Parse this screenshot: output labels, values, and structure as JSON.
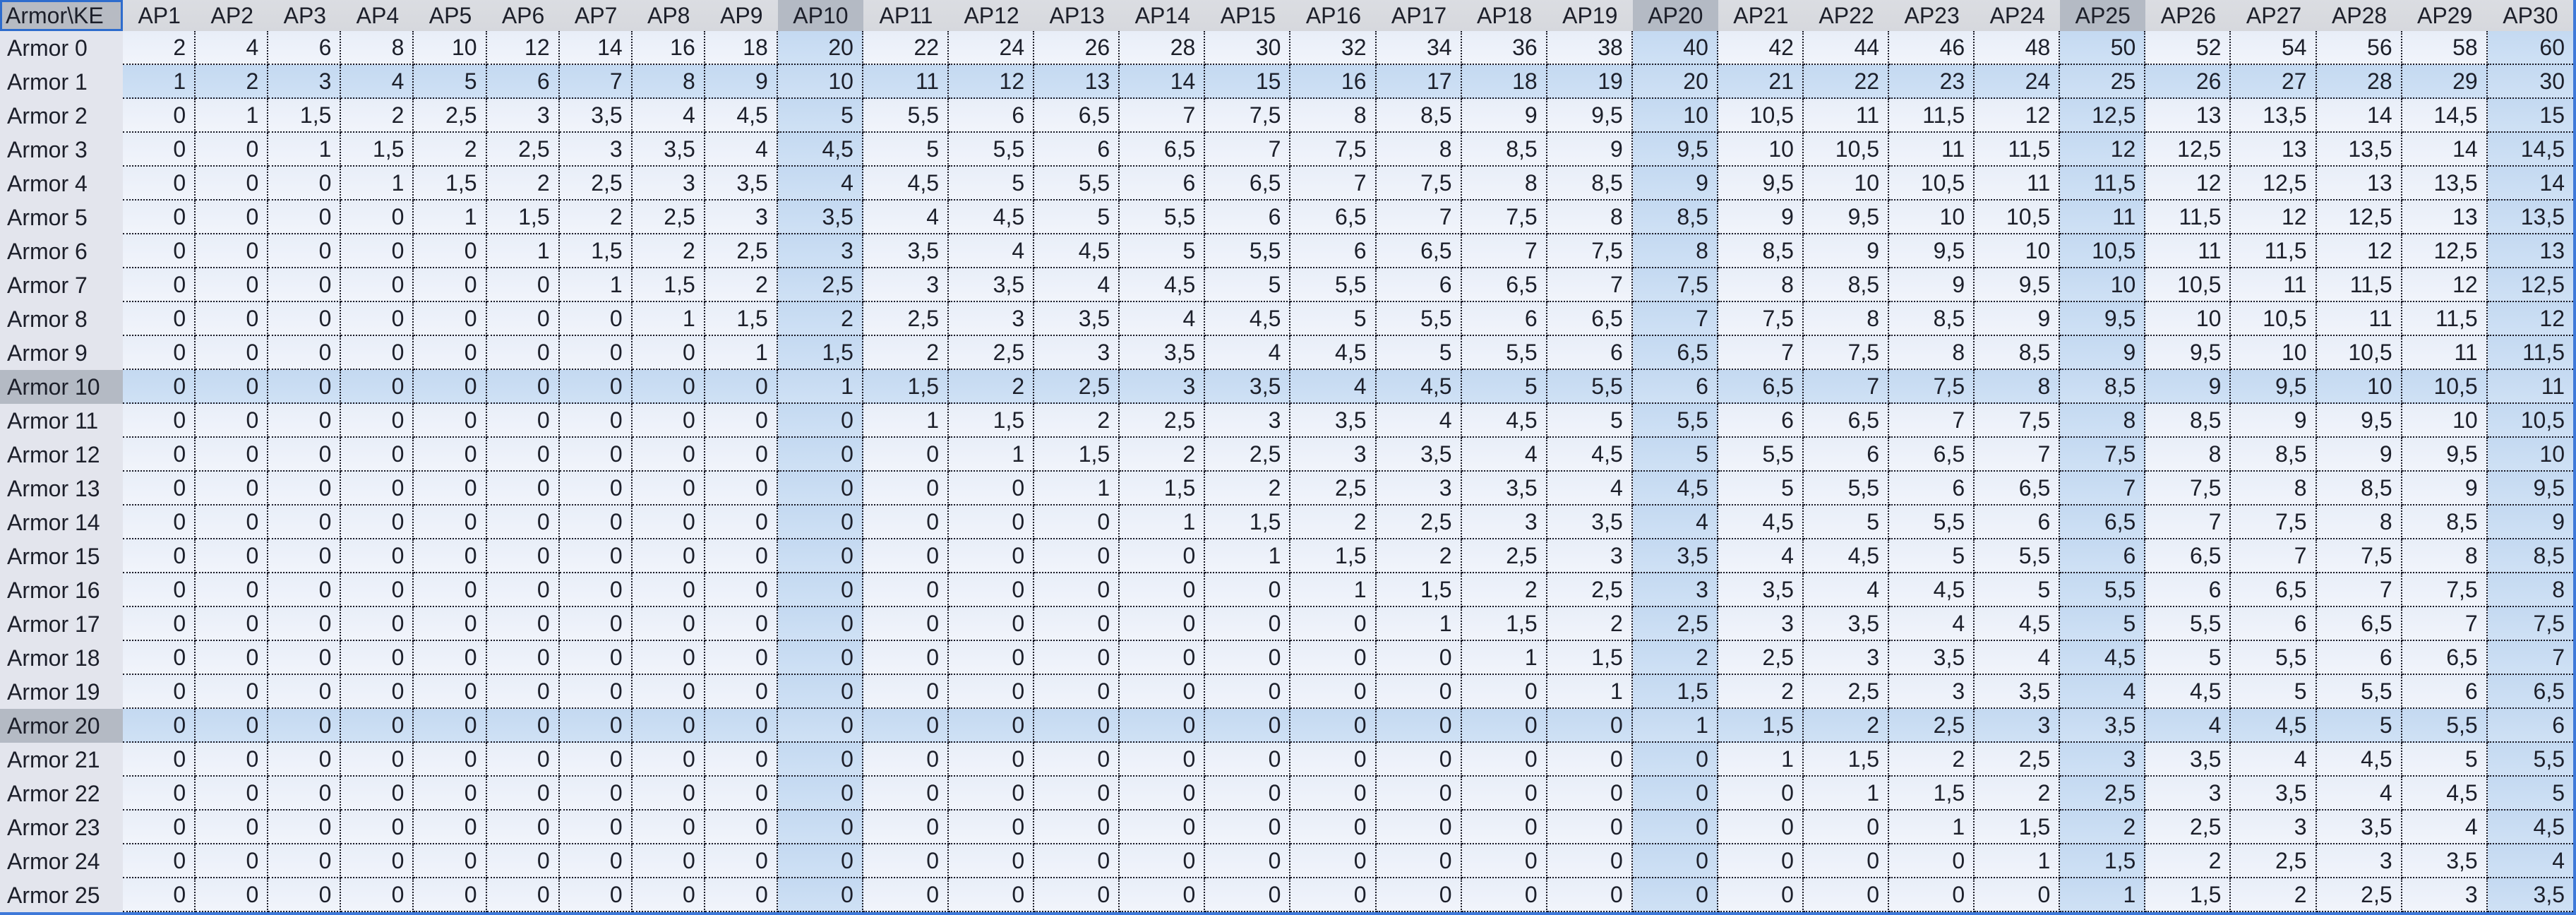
{
  "sheet": {
    "corner_label": "Armor\\KE",
    "column_headers": [
      "AP1",
      "AP2",
      "AP3",
      "AP4",
      "AP5",
      "AP6",
      "AP7",
      "AP8",
      "AP9",
      "AP10",
      "AP11",
      "AP12",
      "AP13",
      "AP14",
      "AP15",
      "AP16",
      "AP17",
      "AP18",
      "AP19",
      "AP20",
      "AP21",
      "AP22",
      "AP23",
      "AP24",
      "AP25",
      "AP26",
      "AP27",
      "AP28",
      "AP29",
      "AP30"
    ],
    "rows": [
      {
        "label": "Armor 0",
        "values": [
          "2",
          "4",
          "6",
          "8",
          "10",
          "12",
          "14",
          "16",
          "18",
          "20",
          "22",
          "24",
          "26",
          "28",
          "30",
          "32",
          "34",
          "36",
          "38",
          "40",
          "42",
          "44",
          "46",
          "48",
          "50",
          "52",
          "54",
          "56",
          "58",
          "60"
        ]
      },
      {
        "label": "Armor 1",
        "values": [
          "1",
          "2",
          "3",
          "4",
          "5",
          "6",
          "7",
          "8",
          "9",
          "10",
          "11",
          "12",
          "13",
          "14",
          "15",
          "16",
          "17",
          "18",
          "19",
          "20",
          "21",
          "22",
          "23",
          "24",
          "25",
          "26",
          "27",
          "28",
          "29",
          "30"
        ]
      },
      {
        "label": "Armor 2",
        "values": [
          "0",
          "1",
          "1,5",
          "2",
          "2,5",
          "3",
          "3,5",
          "4",
          "4,5",
          "5",
          "5,5",
          "6",
          "6,5",
          "7",
          "7,5",
          "8",
          "8,5",
          "9",
          "9,5",
          "10",
          "10,5",
          "11",
          "11,5",
          "12",
          "12,5",
          "13",
          "13,5",
          "14",
          "14,5",
          "15"
        ]
      },
      {
        "label": "Armor 3",
        "values": [
          "0",
          "0",
          "1",
          "1,5",
          "2",
          "2,5",
          "3",
          "3,5",
          "4",
          "4,5",
          "5",
          "5,5",
          "6",
          "6,5",
          "7",
          "7,5",
          "8",
          "8,5",
          "9",
          "9,5",
          "10",
          "10,5",
          "11",
          "11,5",
          "12",
          "12,5",
          "13",
          "13,5",
          "14",
          "14,5"
        ]
      },
      {
        "label": "Armor 4",
        "values": [
          "0",
          "0",
          "0",
          "1",
          "1,5",
          "2",
          "2,5",
          "3",
          "3,5",
          "4",
          "4,5",
          "5",
          "5,5",
          "6",
          "6,5",
          "7",
          "7,5",
          "8",
          "8,5",
          "9",
          "9,5",
          "10",
          "10,5",
          "11",
          "11,5",
          "12",
          "12,5",
          "13",
          "13,5",
          "14"
        ]
      },
      {
        "label": "Armor 5",
        "values": [
          "0",
          "0",
          "0",
          "0",
          "1",
          "1,5",
          "2",
          "2,5",
          "3",
          "3,5",
          "4",
          "4,5",
          "5",
          "5,5",
          "6",
          "6,5",
          "7",
          "7,5",
          "8",
          "8,5",
          "9",
          "9,5",
          "10",
          "10,5",
          "11",
          "11,5",
          "12",
          "12,5",
          "13",
          "13,5"
        ]
      },
      {
        "label": "Armor 6",
        "values": [
          "0",
          "0",
          "0",
          "0",
          "0",
          "1",
          "1,5",
          "2",
          "2,5",
          "3",
          "3,5",
          "4",
          "4,5",
          "5",
          "5,5",
          "6",
          "6,5",
          "7",
          "7,5",
          "8",
          "8,5",
          "9",
          "9,5",
          "10",
          "10,5",
          "11",
          "11,5",
          "12",
          "12,5",
          "13"
        ]
      },
      {
        "label": "Armor 7",
        "values": [
          "0",
          "0",
          "0",
          "0",
          "0",
          "0",
          "1",
          "1,5",
          "2",
          "2,5",
          "3",
          "3,5",
          "4",
          "4,5",
          "5",
          "5,5",
          "6",
          "6,5",
          "7",
          "7,5",
          "8",
          "8,5",
          "9",
          "9,5",
          "10",
          "10,5",
          "11",
          "11,5",
          "12",
          "12,5"
        ]
      },
      {
        "label": "Armor 8",
        "values": [
          "0",
          "0",
          "0",
          "0",
          "0",
          "0",
          "0",
          "1",
          "1,5",
          "2",
          "2,5",
          "3",
          "3,5",
          "4",
          "4,5",
          "5",
          "5,5",
          "6",
          "6,5",
          "7",
          "7,5",
          "8",
          "8,5",
          "9",
          "9,5",
          "10",
          "10,5",
          "11",
          "11,5",
          "12"
        ]
      },
      {
        "label": "Armor 9",
        "values": [
          "0",
          "0",
          "0",
          "0",
          "0",
          "0",
          "0",
          "0",
          "1",
          "1,5",
          "2",
          "2,5",
          "3",
          "3,5",
          "4",
          "4,5",
          "5",
          "5,5",
          "6",
          "6,5",
          "7",
          "7,5",
          "8",
          "8,5",
          "9",
          "9,5",
          "10",
          "10,5",
          "11",
          "11,5"
        ]
      },
      {
        "label": "Armor 10",
        "values": [
          "0",
          "0",
          "0",
          "0",
          "0",
          "0",
          "0",
          "0",
          "0",
          "1",
          "1,5",
          "2",
          "2,5",
          "3",
          "3,5",
          "4",
          "4,5",
          "5",
          "5,5",
          "6",
          "6,5",
          "7",
          "7,5",
          "8",
          "8,5",
          "9",
          "9,5",
          "10",
          "10,5",
          "11"
        ]
      },
      {
        "label": "Armor 11",
        "values": [
          "0",
          "0",
          "0",
          "0",
          "0",
          "0",
          "0",
          "0",
          "0",
          "0",
          "1",
          "1,5",
          "2",
          "2,5",
          "3",
          "3,5",
          "4",
          "4,5",
          "5",
          "5,5",
          "6",
          "6,5",
          "7",
          "7,5",
          "8",
          "8,5",
          "9",
          "9,5",
          "10",
          "10,5"
        ]
      },
      {
        "label": "Armor 12",
        "values": [
          "0",
          "0",
          "0",
          "0",
          "0",
          "0",
          "0",
          "0",
          "0",
          "0",
          "0",
          "1",
          "1,5",
          "2",
          "2,5",
          "3",
          "3,5",
          "4",
          "4,5",
          "5",
          "5,5",
          "6",
          "6,5",
          "7",
          "7,5",
          "8",
          "8,5",
          "9",
          "9,5",
          "10"
        ]
      },
      {
        "label": "Armor 13",
        "values": [
          "0",
          "0",
          "0",
          "0",
          "0",
          "0",
          "0",
          "0",
          "0",
          "0",
          "0",
          "0",
          "1",
          "1,5",
          "2",
          "2,5",
          "3",
          "3,5",
          "4",
          "4,5",
          "5",
          "5,5",
          "6",
          "6,5",
          "7",
          "7,5",
          "8",
          "8,5",
          "9",
          "9,5"
        ]
      },
      {
        "label": "Armor 14",
        "values": [
          "0",
          "0",
          "0",
          "0",
          "0",
          "0",
          "0",
          "0",
          "0",
          "0",
          "0",
          "0",
          "0",
          "1",
          "1,5",
          "2",
          "2,5",
          "3",
          "3,5",
          "4",
          "4,5",
          "5",
          "5,5",
          "6",
          "6,5",
          "7",
          "7,5",
          "8",
          "8,5",
          "9"
        ]
      },
      {
        "label": "Armor 15",
        "values": [
          "0",
          "0",
          "0",
          "0",
          "0",
          "0",
          "0",
          "0",
          "0",
          "0",
          "0",
          "0",
          "0",
          "0",
          "1",
          "1,5",
          "2",
          "2,5",
          "3",
          "3,5",
          "4",
          "4,5",
          "5",
          "5,5",
          "6",
          "6,5",
          "7",
          "7,5",
          "8",
          "8,5"
        ]
      },
      {
        "label": "Armor 16",
        "values": [
          "0",
          "0",
          "0",
          "0",
          "0",
          "0",
          "0",
          "0",
          "0",
          "0",
          "0",
          "0",
          "0",
          "0",
          "0",
          "1",
          "1,5",
          "2",
          "2,5",
          "3",
          "3,5",
          "4",
          "4,5",
          "5",
          "5,5",
          "6",
          "6,5",
          "7",
          "7,5",
          "8"
        ]
      },
      {
        "label": "Armor 17",
        "values": [
          "0",
          "0",
          "0",
          "0",
          "0",
          "0",
          "0",
          "0",
          "0",
          "0",
          "0",
          "0",
          "0",
          "0",
          "0",
          "0",
          "1",
          "1,5",
          "2",
          "2,5",
          "3",
          "3,5",
          "4",
          "4,5",
          "5",
          "5,5",
          "6",
          "6,5",
          "7",
          "7,5"
        ]
      },
      {
        "label": "Armor 18",
        "values": [
          "0",
          "0",
          "0",
          "0",
          "0",
          "0",
          "0",
          "0",
          "0",
          "0",
          "0",
          "0",
          "0",
          "0",
          "0",
          "0",
          "0",
          "1",
          "1,5",
          "2",
          "2,5",
          "3",
          "3,5",
          "4",
          "4,5",
          "5",
          "5,5",
          "6",
          "6,5",
          "7"
        ]
      },
      {
        "label": "Armor 19",
        "values": [
          "0",
          "0",
          "0",
          "0",
          "0",
          "0",
          "0",
          "0",
          "0",
          "0",
          "0",
          "0",
          "0",
          "0",
          "0",
          "0",
          "0",
          "0",
          "1",
          "1,5",
          "2",
          "2,5",
          "3",
          "3,5",
          "4",
          "4,5",
          "5",
          "5,5",
          "6",
          "6,5"
        ]
      },
      {
        "label": "Armor 20",
        "values": [
          "0",
          "0",
          "0",
          "0",
          "0",
          "0",
          "0",
          "0",
          "0",
          "0",
          "0",
          "0",
          "0",
          "0",
          "0",
          "0",
          "0",
          "0",
          "0",
          "1",
          "1,5",
          "2",
          "2,5",
          "3",
          "3,5",
          "4",
          "4,5",
          "5",
          "5,5",
          "6"
        ]
      },
      {
        "label": "Armor 21",
        "values": [
          "0",
          "0",
          "0",
          "0",
          "0",
          "0",
          "0",
          "0",
          "0",
          "0",
          "0",
          "0",
          "0",
          "0",
          "0",
          "0",
          "0",
          "0",
          "0",
          "0",
          "1",
          "1,5",
          "2",
          "2,5",
          "3",
          "3,5",
          "4",
          "4,5",
          "5",
          "5,5"
        ]
      },
      {
        "label": "Armor 22",
        "values": [
          "0",
          "0",
          "0",
          "0",
          "0",
          "0",
          "0",
          "0",
          "0",
          "0",
          "0",
          "0",
          "0",
          "0",
          "0",
          "0",
          "0",
          "0",
          "0",
          "0",
          "0",
          "1",
          "1,5",
          "2",
          "2,5",
          "3",
          "3,5",
          "4",
          "4,5",
          "5"
        ]
      },
      {
        "label": "Armor 23",
        "values": [
          "0",
          "0",
          "0",
          "0",
          "0",
          "0",
          "0",
          "0",
          "0",
          "0",
          "0",
          "0",
          "0",
          "0",
          "0",
          "0",
          "0",
          "0",
          "0",
          "0",
          "0",
          "0",
          "1",
          "1,5",
          "2",
          "2,5",
          "3",
          "3,5",
          "4",
          "4,5"
        ]
      },
      {
        "label": "Armor 24",
        "values": [
          "0",
          "0",
          "0",
          "0",
          "0",
          "0",
          "0",
          "0",
          "0",
          "0",
          "0",
          "0",
          "0",
          "0",
          "0",
          "0",
          "0",
          "0",
          "0",
          "0",
          "0",
          "0",
          "0",
          "1",
          "1,5",
          "2",
          "2,5",
          "3",
          "3,5",
          "4"
        ]
      },
      {
        "label": "Armor 25",
        "values": [
          "0",
          "0",
          "0",
          "0",
          "0",
          "0",
          "0",
          "0",
          "0",
          "0",
          "0",
          "0",
          "0",
          "0",
          "0",
          "0",
          "0",
          "0",
          "0",
          "0",
          "0",
          "0",
          "0",
          "0",
          "1",
          "1,5",
          "2",
          "2,5",
          "3",
          "3,5"
        ]
      }
    ],
    "highlight": {
      "blue_rows": [
        "Armor 1",
        "Armor 10",
        "Armor 20"
      ],
      "blue_columns": [
        "AP10",
        "AP20",
        "AP25",
        "AP30"
      ],
      "dark_header_columns": [
        "AP10",
        "AP20",
        "AP25"
      ],
      "dark_label_rows": [
        "Armor 10",
        "Armor 20"
      ]
    },
    "colors": {
      "cell_bg_top": "#e8eef8",
      "cell_bg_bot": "#f1f4fb",
      "hl_top": "#c4d9f1",
      "hl_bot": "#cfe1f5",
      "header_bg": "#d9dbdf",
      "header_dark_bg": "#b4bac4",
      "label_bg": "#e3e5ed",
      "label_dark_bg": "#b4bac4",
      "grid_dot": "#1a1a26",
      "selection_border": "#2e6ccd",
      "edge_border": "#3e79d9",
      "text": "#1c1f2a"
    }
  }
}
